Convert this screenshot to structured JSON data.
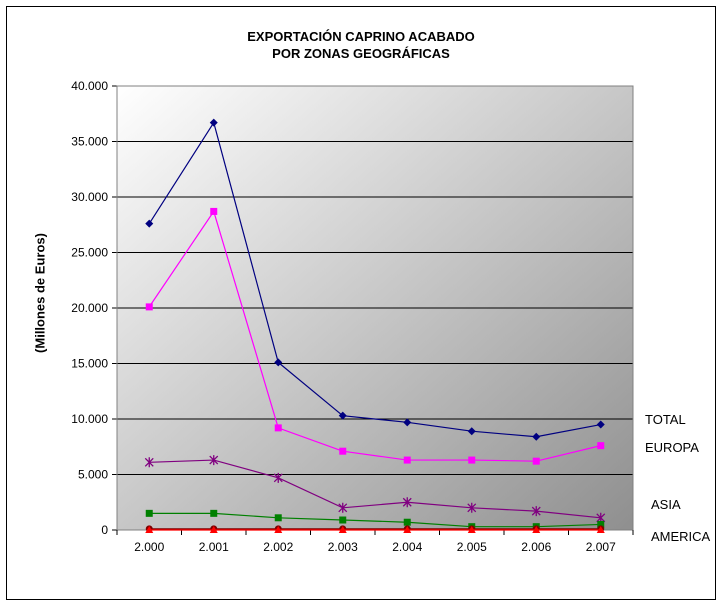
{
  "chart_data": {
    "type": "line",
    "title_line1": "EXPORTACIÓN CAPRINO ACABADO",
    "title_line2": "POR ZONAS GEOGRÁFICAS",
    "ylabel": "(Millones de Euros)",
    "xlabel": "",
    "categories": [
      "2.000",
      "2.001",
      "2.002",
      "2.003",
      "2.004",
      "2.005",
      "2.006",
      "2.007"
    ],
    "yticks": [
      "0",
      "5.000",
      "10.000",
      "15.000",
      "20.000",
      "25.000",
      "30.000",
      "35.000",
      "40.000"
    ],
    "ylim": [
      0,
      40000
    ],
    "grid": true,
    "legend_placement": "right, next to line ends",
    "series": [
      {
        "name": "TOTAL",
        "color": "#000080",
        "marker": "diamond",
        "values": [
          27600,
          36700,
          15100,
          10300,
          9700,
          8900,
          8400,
          9500
        ]
      },
      {
        "name": "EUROPA",
        "color": "#ff00ff",
        "marker": "square",
        "values": [
          20100,
          28700,
          9200,
          7100,
          6300,
          6300,
          6200,
          7600
        ]
      },
      {
        "name": "ASIA",
        "color": "#800080",
        "marker": "asterisk",
        "values": [
          6100,
          6300,
          4700,
          2000,
          2500,
          2000,
          1700,
          1100
        ]
      },
      {
        "name": "",
        "color": "#008000",
        "marker": "square",
        "values": [
          1500,
          1500,
          1100,
          900,
          700,
          300,
          300,
          500
        ]
      },
      {
        "name": "AMERICA",
        "color": "#800000",
        "marker": "circle",
        "values": [
          100,
          100,
          100,
          100,
          100,
          100,
          100,
          100
        ]
      },
      {
        "name": "",
        "color": "#ff0000",
        "marker": "triangle",
        "values": [
          0,
          0,
          0,
          0,
          0,
          0,
          0,
          0
        ]
      }
    ]
  }
}
